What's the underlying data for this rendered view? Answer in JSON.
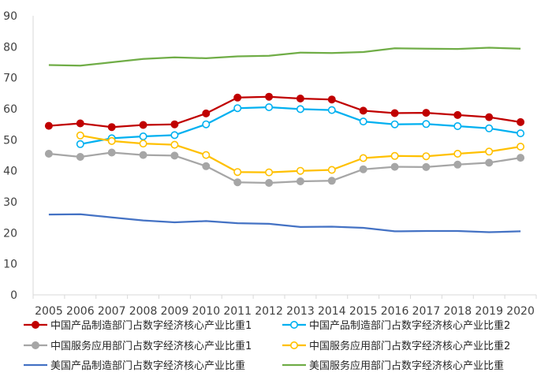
{
  "chart_data": {
    "type": "line",
    "title": "",
    "xlabel": "",
    "ylabel": "",
    "ylim": [
      0,
      90
    ],
    "yticks": [
      0,
      10,
      20,
      30,
      40,
      50,
      60,
      70,
      80,
      90
    ],
    "grid": false,
    "legend_position": "bottom",
    "x": [
      2005,
      2006,
      2007,
      2008,
      2009,
      2010,
      2011,
      2012,
      2013,
      2014,
      2015,
      2016,
      2017,
      2018,
      2019,
      2020
    ],
    "series": [
      {
        "name": "中国产品制造部门占数字经济核心产业比重1",
        "color": "#c00000",
        "marker": "filled",
        "values": [
          54.5,
          55.3,
          54.1,
          54.8,
          55.0,
          58.5,
          63.6,
          63.9,
          63.3,
          63.0,
          59.4,
          58.6,
          58.7,
          58.0,
          57.3,
          55.7
        ]
      },
      {
        "name": "中国产品制造部门占数字经济核心产业比重2",
        "color": "#00b0f0",
        "marker": "hollow",
        "values": [
          null,
          48.6,
          50.5,
          51.1,
          51.5,
          55.0,
          60.2,
          60.5,
          59.9,
          59.6,
          55.9,
          55.0,
          55.1,
          54.4,
          53.7,
          52.1
        ]
      },
      {
        "name": "中国服务应用部门占数字经济核心产业比重1",
        "color": "#a6a6a6",
        "marker": "filled",
        "values": [
          45.5,
          44.5,
          45.9,
          45.1,
          44.9,
          41.5,
          36.3,
          36.1,
          36.6,
          36.8,
          40.5,
          41.3,
          41.2,
          42.0,
          42.6,
          44.2
        ]
      },
      {
        "name": "中国服务应用部门占数字经济核心产业比重2",
        "color": "#ffc000",
        "marker": "hollow",
        "values": [
          null,
          51.4,
          49.6,
          48.8,
          48.4,
          45.1,
          39.6,
          39.5,
          40.0,
          40.3,
          44.1,
          44.8,
          44.7,
          45.5,
          46.2,
          47.8
        ]
      },
      {
        "name": "美国产品制造部门占数字经济核心产业比重",
        "color": "#4472c4",
        "marker": "none",
        "values": [
          25.9,
          26.0,
          25.0,
          24.0,
          23.4,
          23.8,
          23.1,
          22.9,
          21.9,
          22.0,
          21.6,
          20.5,
          20.6,
          20.6,
          20.2,
          20.5
        ]
      },
      {
        "name": "美国服务应用部门占数字经济核心产业比重",
        "color": "#70ad47",
        "marker": "none",
        "values": [
          74.1,
          73.9,
          75.0,
          76.1,
          76.6,
          76.3,
          76.9,
          77.1,
          78.1,
          78.0,
          78.3,
          79.5,
          79.4,
          79.3,
          79.7,
          79.4
        ]
      }
    ]
  }
}
